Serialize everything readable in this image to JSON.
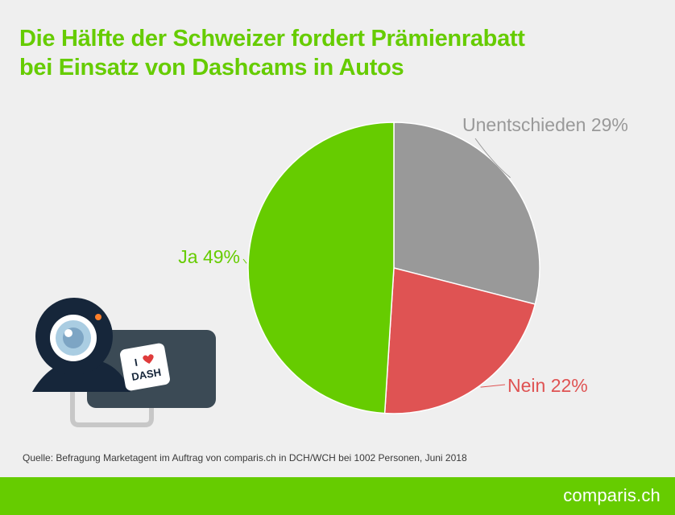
{
  "title_lines": [
    "Die Hälfte der Schweizer fordert Prämienrabatt",
    "bei Einsatz von Dashcams in Autos"
  ],
  "source": "Quelle: Befragung Marketagent im Auftrag von comparis.ch in DCH/WCH bei 1002 Personen, Juni 2018",
  "brand": {
    "pre": "c",
    "mark": "o",
    "post": "mparis.ch"
  },
  "illustration": {
    "sticker_line1": "I",
    "sticker_line2": "DASH"
  },
  "chart_data": {
    "type": "pie",
    "title": "Die Hälfte der Schweizer fordert Prämienrabatt bei Einsatz von Dashcams in Autos",
    "slices": [
      {
        "label": "Unentschieden 29%",
        "value": 29,
        "color": "#999999"
      },
      {
        "label": "Nein 22%",
        "value": 22,
        "color": "#df5353"
      },
      {
        "label": "Ja 49%",
        "value": 49,
        "color": "#66cc00"
      }
    ],
    "start": "12 o'clock",
    "direction": "clockwise",
    "legend": "none"
  }
}
